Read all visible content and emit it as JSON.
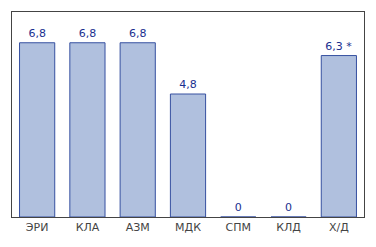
{
  "chart_data": {
    "type": "bar",
    "categories": [
      "ЭРИ",
      "КЛА",
      "АЗМ",
      "МДК",
      "СПМ",
      "КЛД",
      "Х/Д"
    ],
    "values": [
      6.8,
      6.8,
      6.8,
      4.8,
      0,
      0,
      6.3
    ],
    "value_labels": [
      "6,8",
      "6,8",
      "6,8",
      "4,8",
      "0",
      "0",
      "6,3 *"
    ],
    "data_labels": true,
    "color": "#b0c0de",
    "ylim": [
      0,
      8
    ],
    "grid": false,
    "tick_labels": "x"
  }
}
